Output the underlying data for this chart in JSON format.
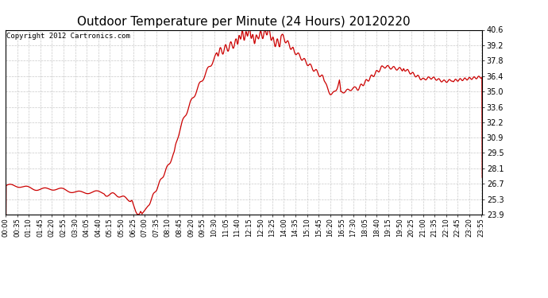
{
  "title": "Outdoor Temperature per Minute (24 Hours) 20120220",
  "copyright_text": "Copyright 2012 Cartronics.com",
  "line_color": "#cc0000",
  "bg_color": "#ffffff",
  "plot_bg_color": "#ffffff",
  "grid_color": "#bbbbbb",
  "yticks": [
    23.9,
    25.3,
    26.7,
    28.1,
    29.5,
    30.9,
    32.2,
    33.6,
    35.0,
    36.4,
    37.8,
    39.2,
    40.6
  ],
  "ymin": 23.9,
  "ymax": 40.6,
  "title_fontsize": 11,
  "copyright_fontsize": 6.5,
  "tick_fontsize": 6,
  "ytick_fontsize": 7,
  "linewidth": 0.9
}
